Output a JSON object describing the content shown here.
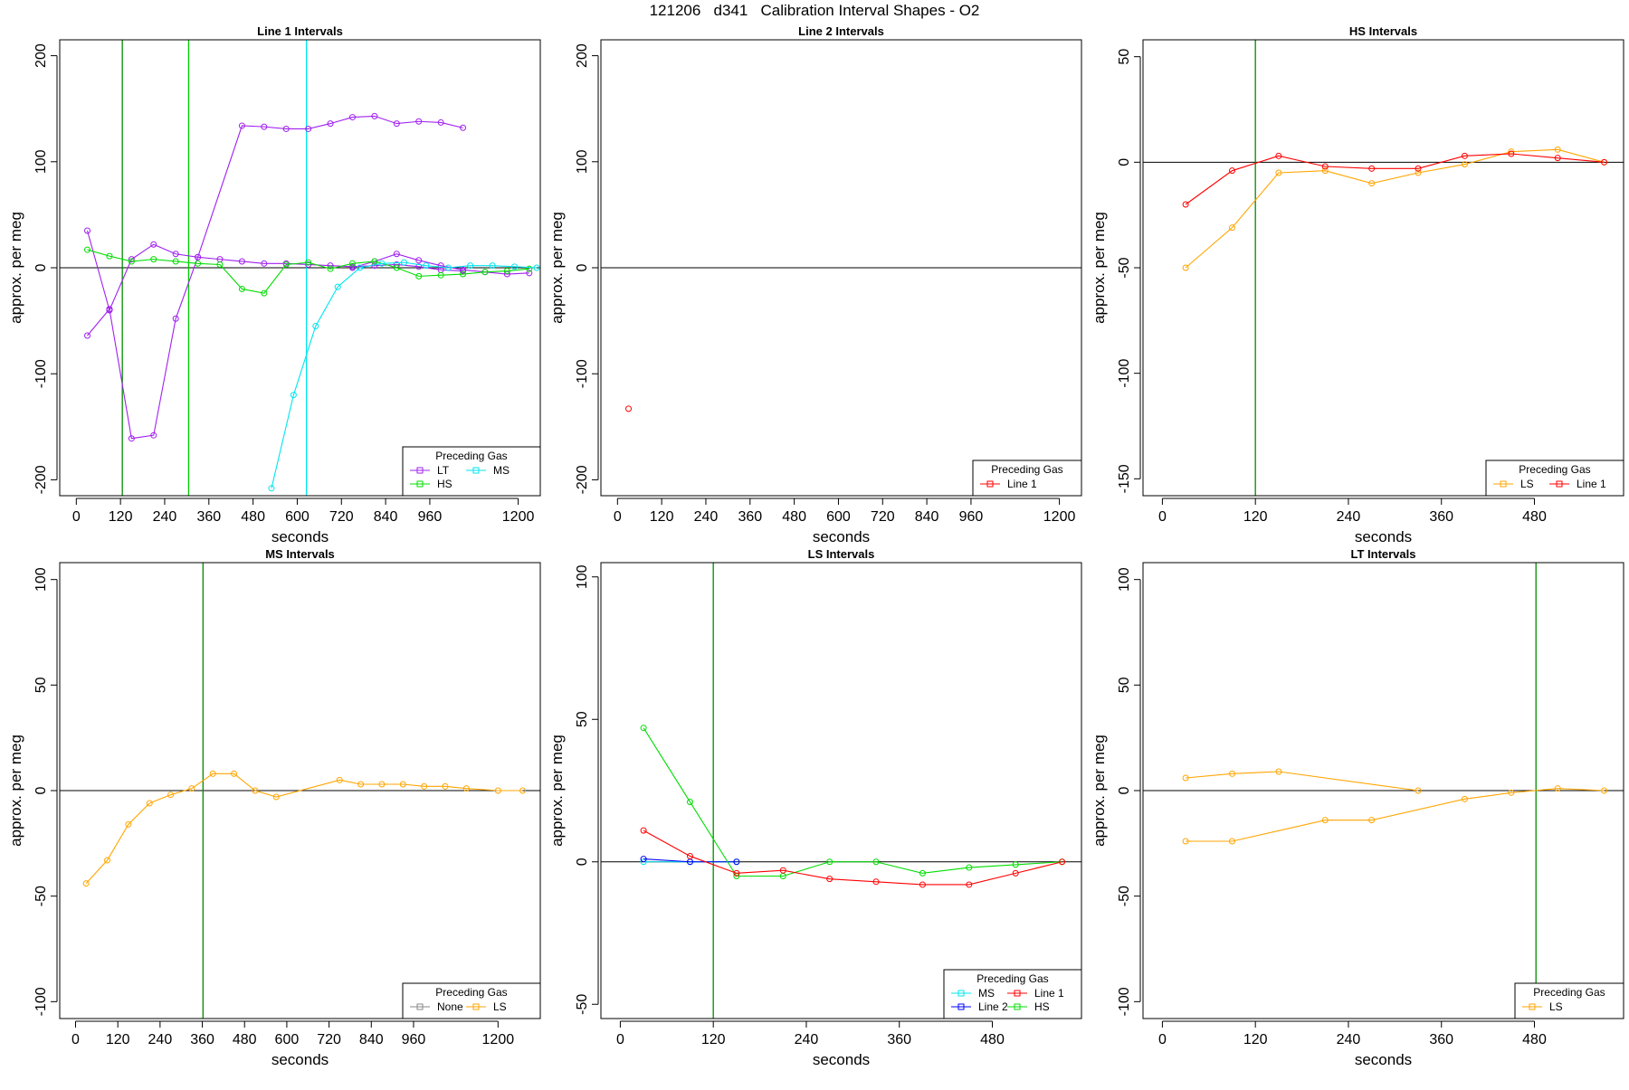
{
  "page": {
    "title": "121206   d341   Calibration Interval Shapes - O2"
  },
  "colors": {
    "LT": "#a020f0",
    "HS": "#00dd00",
    "MS": "#00e5ee",
    "LS": "#ffa500",
    "Line 1": "#ff0000",
    "Line 2": "#0000ff",
    "None": "#888888",
    "vline_green": "#008b00",
    "vline_light_green": "#00cc00",
    "vline_cyan": "#00e5ee"
  },
  "chart_data": [
    {
      "type": "line",
      "title": "Line 1 Intervals",
      "xlabel": "seconds",
      "ylabel": "approx. per meg",
      "xlim": [
        -45,
        1260
      ],
      "ylim": [
        -215,
        215
      ],
      "xticks": [
        0,
        120,
        240,
        360,
        480,
        600,
        720,
        840,
        960,
        1200
      ],
      "yticks": [
        -200,
        -100,
        0,
        100,
        200
      ],
      "hline": 0,
      "vlines": [
        {
          "x": 125,
          "color": "vline_green"
        },
        {
          "x": 305,
          "color": "vline_light_green"
        },
        {
          "x": 625,
          "color": "vline_cyan"
        }
      ],
      "legend": {
        "title": "Preceding Gas",
        "position": "bottom-right",
        "columns": 2,
        "entries": [
          "LT",
          "HS",
          "MS"
        ]
      },
      "series": [
        {
          "name": "LT",
          "color": "LT",
          "x": [
            30,
            90
          ],
          "y": [
            35,
            -40
          ]
        },
        {
          "name": "LT",
          "color": "LT",
          "x": [
            90,
            150,
            210,
            270,
            330,
            390,
            450,
            510,
            570,
            630,
            690,
            750,
            810,
            870,
            930,
            990,
            1050
          ],
          "y": [
            -40,
            8,
            22,
            13,
            10,
            8,
            6,
            4,
            4,
            3,
            2,
            1,
            2,
            3,
            1,
            -2,
            -3
          ]
        },
        {
          "name": "LT",
          "color": "LT",
          "x": [
            30,
            90,
            150,
            210,
            270,
            330,
            450,
            510,
            570,
            630,
            690,
            750,
            810,
            870,
            930,
            990,
            1050
          ],
          "y": [
            -64,
            -39,
            -161,
            -158,
            -48,
            10,
            134,
            133,
            131,
            131,
            136,
            142,
            143,
            136,
            138,
            137,
            132
          ]
        },
        {
          "name": "LT",
          "color": "LT",
          "x": [
            750,
            810,
            870,
            930,
            990,
            1050,
            1110,
            1170,
            1230
          ],
          "y": [
            0,
            6,
            13,
            7,
            2,
            -2,
            -4,
            -6,
            -5
          ]
        },
        {
          "name": "HS",
          "color": "HS",
          "x": [
            30,
            90,
            150,
            210,
            270,
            330,
            390,
            450,
            510,
            570,
            630,
            690,
            750,
            810,
            870,
            930,
            990,
            1050,
            1110,
            1170,
            1230
          ],
          "y": [
            17,
            11,
            6,
            8,
            6,
            4,
            3,
            -20,
            -24,
            3,
            5,
            -1,
            4,
            6,
            0,
            -8,
            -7,
            -6,
            -4,
            -3,
            -1
          ]
        },
        {
          "name": "MS",
          "color": "MS",
          "x": [
            530,
            590,
            650,
            710,
            770,
            830,
            890,
            950,
            1010,
            1070,
            1130,
            1190,
            1250
          ],
          "y": [
            -208,
            -120,
            -55,
            -18,
            0,
            4,
            5,
            2,
            0,
            2,
            2,
            1,
            0
          ]
        }
      ]
    },
    {
      "type": "line",
      "title": "Line 2 Intervals",
      "xlabel": "seconds",
      "ylabel": "approx. per meg",
      "xlim": [
        -45,
        1260
      ],
      "ylim": [
        -215,
        215
      ],
      "xticks": [
        0,
        120,
        240,
        360,
        480,
        600,
        720,
        840,
        960,
        1200
      ],
      "yticks": [
        -200,
        -100,
        0,
        100,
        200
      ],
      "hline": 0,
      "vlines": [],
      "legend": {
        "title": "Preceding Gas",
        "position": "bottom-right",
        "columns": 1,
        "entries": [
          "Line 1"
        ]
      },
      "series": [
        {
          "name": "Line 1",
          "color": "Line 1",
          "x": [
            30
          ],
          "y": [
            -133
          ]
        }
      ]
    },
    {
      "type": "line",
      "title": "HS Intervals",
      "xlabel": "seconds",
      "ylabel": "approx. per meg",
      "xlim": [
        -25,
        595
      ],
      "ylim": [
        -158,
        58
      ],
      "xticks": [
        0,
        120,
        240,
        360,
        480
      ],
      "yticks": [
        -150,
        -100,
        -50,
        0,
        50
      ],
      "hline": 0,
      "vlines": [
        {
          "x": 120,
          "color": "vline_green"
        }
      ],
      "legend": {
        "title": "Preceding Gas",
        "position": "bottom-right",
        "columns": 2,
        "entries": [
          "LS",
          "Line 1"
        ]
      },
      "series": [
        {
          "name": "LS",
          "color": "LS",
          "x": [
            30,
            90,
            150,
            210,
            270,
            330,
            390,
            450,
            510,
            570
          ],
          "y": [
            -50,
            -31,
            -5,
            -4,
            -10,
            -5,
            -1,
            5,
            6,
            0
          ]
        },
        {
          "name": "Line 1",
          "color": "Line 1",
          "x": [
            30,
            90,
            150,
            210,
            270,
            330,
            390,
            450,
            510,
            570
          ],
          "y": [
            -20,
            -4,
            3,
            -2,
            -3,
            -3,
            3,
            4,
            2,
            0
          ]
        }
      ]
    },
    {
      "type": "line",
      "title": "MS Intervals",
      "xlabel": "seconds",
      "ylabel": "approx. per meg",
      "xlim": [
        -45,
        1320
      ],
      "ylim": [
        -108,
        108
      ],
      "xticks": [
        0,
        120,
        240,
        360,
        480,
        600,
        720,
        840,
        960,
        1200
      ],
      "yticks": [
        -100,
        -50,
        0,
        50,
        100
      ],
      "hline": 0,
      "vlines": [
        {
          "x": 362,
          "color": "vline_green"
        }
      ],
      "legend": {
        "title": "Preceding Gas",
        "position": "bottom-right",
        "columns": 2,
        "entries": [
          "None",
          "LS"
        ]
      },
      "series": [
        {
          "name": "LS",
          "color": "LS",
          "x": [
            30,
            90,
            150,
            210,
            270,
            330,
            390,
            450,
            510,
            570,
            750,
            810,
            870,
            930,
            990,
            1050,
            1110,
            1200,
            1270
          ],
          "y": [
            -44,
            -33,
            -16,
            -6,
            -2,
            1,
            8,
            8,
            0,
            -3,
            5,
            3,
            3,
            3,
            2,
            2,
            1,
            0,
            0
          ]
        }
      ]
    },
    {
      "type": "line",
      "title": "LS Intervals",
      "xlabel": "seconds",
      "ylabel": "approx. per meg",
      "xlim": [
        -25,
        595
      ],
      "ylim": [
        -55,
        105
      ],
      "xticks": [
        0,
        120,
        240,
        360,
        480
      ],
      "yticks": [
        -50,
        0,
        50,
        100
      ],
      "hline": 0,
      "vlines": [
        {
          "x": 120,
          "color": "vline_green"
        }
      ],
      "legend": {
        "title": "Preceding Gas",
        "position": "bottom-right",
        "columns": 2,
        "entries": [
          "MS",
          "Line 2",
          "Line 1",
          "HS"
        ]
      },
      "series": [
        {
          "name": "MS",
          "color": "MS",
          "x": [
            30,
            90,
            150
          ],
          "y": [
            0,
            0,
            0
          ]
        },
        {
          "name": "Line 2",
          "color": "Line 2",
          "x": [
            30,
            90,
            150
          ],
          "y": [
            1,
            0,
            0
          ]
        },
        {
          "name": "HS",
          "color": "HS",
          "x": [
            30,
            90,
            150,
            210,
            270,
            330,
            390,
            450,
            510,
            570
          ],
          "y": [
            47,
            21,
            -5,
            -5,
            0,
            0,
            -4,
            -2,
            -1,
            0
          ]
        },
        {
          "name": "Line 1",
          "color": "Line 1",
          "x": [
            30,
            90,
            150,
            210,
            270,
            330,
            390,
            450,
            510,
            570
          ],
          "y": [
            11,
            2,
            -4,
            -3,
            -6,
            -7,
            -8,
            -8,
            -4,
            0
          ]
        }
      ]
    },
    {
      "type": "line",
      "title": "LT Intervals",
      "xlabel": "seconds",
      "ylabel": "approx. per meg",
      "xlim": [
        -25,
        595
      ],
      "ylim": [
        -108,
        108
      ],
      "xticks": [
        0,
        120,
        240,
        360,
        480
      ],
      "yticks": [
        -100,
        -50,
        0,
        50,
        100
      ],
      "hline": 0,
      "vlines": [
        {
          "x": 482,
          "color": "vline_green"
        }
      ],
      "legend": {
        "title": "Preceding Gas",
        "position": "bottom-right",
        "columns": 1,
        "entries": [
          "LS"
        ]
      },
      "series": [
        {
          "name": "LS",
          "color": "LS",
          "x": [
            30,
            90,
            150,
            330
          ],
          "y": [
            6,
            8,
            9,
            0
          ]
        },
        {
          "name": "LS",
          "color": "LS",
          "x": [
            30,
            90,
            210,
            270,
            390,
            450,
            510,
            570
          ],
          "y": [
            -24,
            -24,
            -14,
            -14,
            -4,
            -1,
            1,
            0
          ]
        }
      ]
    }
  ]
}
